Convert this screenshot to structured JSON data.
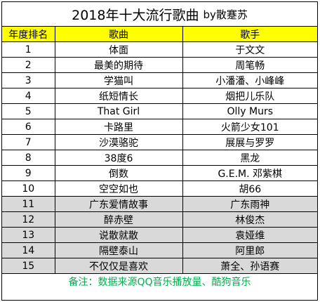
{
  "title": {
    "main": "2018年十大流行歌曲",
    "by": "by散蹇苏"
  },
  "headers": {
    "rank": "年度排名",
    "song": "歌曲",
    "singer": "歌手"
  },
  "rows": [
    {
      "rank": "1",
      "song": "体面",
      "singer": "于文文",
      "shaded": false
    },
    {
      "rank": "2",
      "song": "最美的期待",
      "singer": "周笔畅",
      "shaded": false
    },
    {
      "rank": "3",
      "song": "学猫叫",
      "singer": "小潘潘、小峰峰",
      "shaded": false
    },
    {
      "rank": "4",
      "song": "纸短情长",
      "singer": "烟把儿乐队",
      "shaded": false
    },
    {
      "rank": "5",
      "song": "That Girl",
      "singer": "Olly Murs",
      "shaded": false
    },
    {
      "rank": "6",
      "song": "卡路里",
      "singer": "火箭少女101",
      "shaded": false
    },
    {
      "rank": "7",
      "song": "沙漠骆驼",
      "singer": "展展与罗罗",
      "shaded": false
    },
    {
      "rank": "8",
      "song": "38度6",
      "singer": "黑龙",
      "shaded": false
    },
    {
      "rank": "9",
      "song": "倒数",
      "singer": "G.E.M. 邓紫棋",
      "shaded": false
    },
    {
      "rank": "10",
      "song": "空空如也",
      "singer": "胡66",
      "shaded": false
    },
    {
      "rank": "11",
      "song": "广东爱情故事",
      "singer": "广东雨神",
      "shaded": true
    },
    {
      "rank": "12",
      "song": "醉赤壁",
      "singer": "林俊杰",
      "shaded": true
    },
    {
      "rank": "13",
      "song": "说散就散",
      "singer": "袁娅维",
      "shaded": true
    },
    {
      "rank": "14",
      "song": "隔壁泰山",
      "singer": "阿里郎",
      "shaded": true
    },
    {
      "rank": "15",
      "song": "不仅仅是喜欢",
      "singer": "萧全、孙语赛",
      "shaded": true
    }
  ],
  "note": "备注：数据来源QQ音乐播放量、酷狗音乐",
  "colors": {
    "header_bg": "#ffff00",
    "shaded_bg": "#d9d9d9",
    "note_text": "#00b050"
  }
}
